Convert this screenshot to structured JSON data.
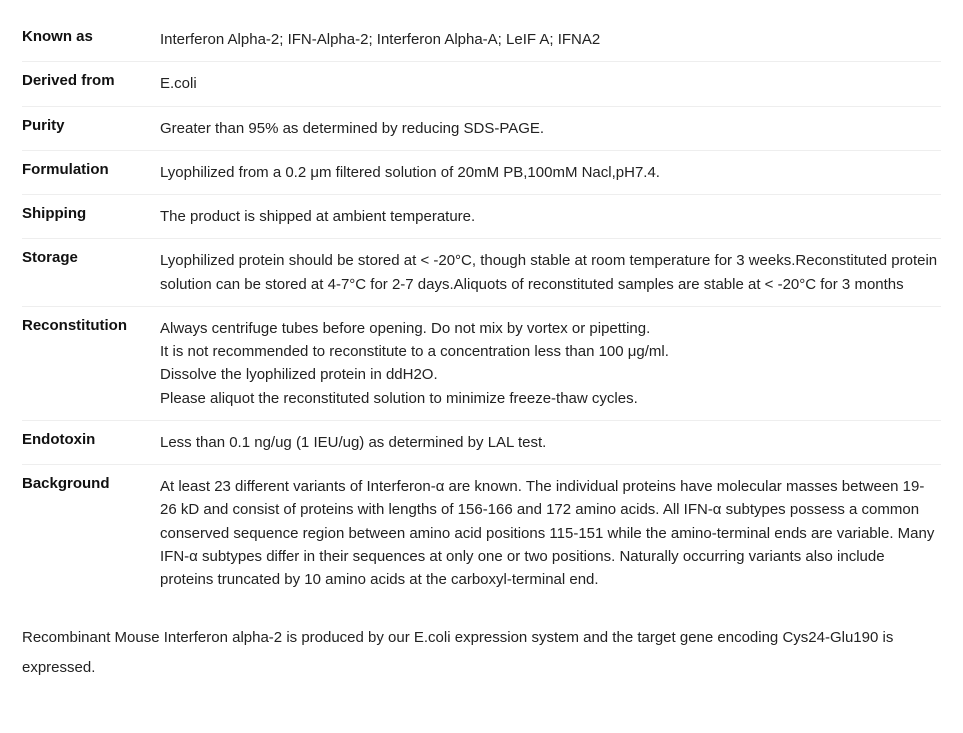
{
  "rows": [
    {
      "label": "Known as",
      "lines": [
        "Interferon Alpha-2; IFN-Alpha-2; Interferon Alpha-A; LeIF A; IFNA2"
      ]
    },
    {
      "label": "Derived from",
      "lines": [
        "E.coli"
      ]
    },
    {
      "label": "Purity",
      "lines": [
        "Greater than 95% as determined by reducing SDS-PAGE."
      ]
    },
    {
      "label": "Formulation",
      "lines": [
        "Lyophilized from a 0.2 μm filtered solution of 20mM PB,100mM Nacl,pH7.4."
      ]
    },
    {
      "label": "Shipping",
      "lines": [
        "The product is shipped at ambient temperature."
      ]
    },
    {
      "label": "Storage",
      "lines": [
        "Lyophilized protein should be stored at < -20°C, though stable at room temperature for 3 weeks.Reconstituted protein solution can be stored at 4-7°C for 2-7 days.Aliquots of reconstituted samples are stable at < -20°C for 3 months"
      ]
    },
    {
      "label": "Reconstitution",
      "lines": [
        "Always centrifuge tubes before opening. Do not mix by vortex or pipetting.",
        "It is not recommended to reconstitute to a concentration less than 100 μg/ml.",
        "Dissolve the lyophilized protein in ddH2O.",
        "Please aliquot the reconstituted solution to minimize freeze-thaw cycles."
      ]
    },
    {
      "label": "Endotoxin",
      "lines": [
        "Less than 0.1 ng/ug (1 IEU/ug) as determined by LAL test."
      ]
    },
    {
      "label": "Background",
      "lines": [
        "At least 23 different variants of Interferon-α are known. The individual proteins have molecular masses between 19-26 kD and consist of proteins with lengths of 156-166 and 172 amino acids. All IFN-α subtypes possess a common conserved sequence region between amino acid positions 115-151 while the amino-terminal ends are variable. Many IFN-α subtypes differ in their sequences at only one or two positions. Naturally occurring variants also include proteins truncated by 10 amino acids at the carboxyl-terminal end."
      ]
    }
  ],
  "footer": "Recombinant Mouse Interferon alpha-2 is produced by our E.coli expression system and the target gene encoding Cys24-Glu190 is expressed."
}
